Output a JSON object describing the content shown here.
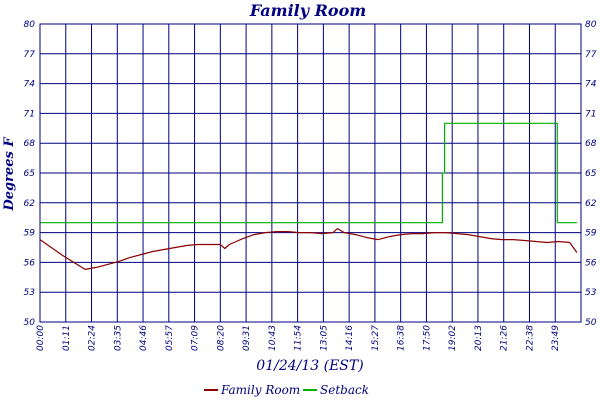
{
  "chart_data": {
    "type": "line",
    "title": "Family Room",
    "xlabel": "01/24/13 (EST)",
    "ylabel": "Degrees F",
    "ylim": [
      50,
      80
    ],
    "y_ticks": [
      "50",
      "53",
      "56",
      "59",
      "62",
      "65",
      "68",
      "71",
      "74",
      "77",
      "80"
    ],
    "x_ticks": [
      "00:00",
      "01:11",
      "02:24",
      "03:35",
      "04:46",
      "05:57",
      "07:09",
      "08:20",
      "09:31",
      "10:43",
      "11:54",
      "13:05",
      "14:16",
      "15:27",
      "16:38",
      "17:50",
      "19:02",
      "20:13",
      "21:26",
      "22:38",
      "23:49"
    ],
    "grid": true,
    "legend": "bottom",
    "colors": {
      "grid": "#000080",
      "frame": "#000080"
    },
    "series": [
      {
        "name": "Family Room",
        "color": "#8b0000",
        "x": [
          0,
          0.5,
          1.0,
          1.5,
          2.0,
          2.5,
          3.0,
          3.5,
          4.0,
          4.5,
          5.0,
          5.5,
          6.0,
          6.5,
          7.0,
          7.5,
          8.0,
          8.2,
          8.4,
          8.6,
          9.0,
          9.5,
          10.0,
          10.5,
          11.0,
          11.5,
          12.0,
          12.5,
          13.0,
          13.2,
          13.5,
          14.0,
          14.5,
          15.0,
          15.5,
          16.0,
          16.5,
          17.0,
          17.5,
          18.0,
          18.5,
          19.0,
          19.5,
          20.0,
          20.5,
          21.0,
          21.5,
          22.0,
          22.5,
          23.0,
          23.5,
          23.82
        ],
        "y": [
          58.3,
          57.5,
          56.7,
          56.0,
          55.3,
          55.5,
          55.8,
          56.1,
          56.5,
          56.8,
          57.1,
          57.3,
          57.5,
          57.7,
          57.8,
          57.8,
          57.8,
          57.4,
          57.8,
          58.0,
          58.4,
          58.8,
          59.0,
          59.1,
          59.1,
          59.0,
          59.0,
          58.9,
          59.0,
          59.4,
          59.0,
          58.8,
          58.5,
          58.3,
          58.6,
          58.8,
          58.9,
          58.9,
          59.0,
          59.0,
          58.9,
          58.8,
          58.6,
          58.4,
          58.3,
          58.3,
          58.2,
          58.1,
          58.0,
          58.1,
          58.0,
          57.0
        ]
      },
      {
        "name": "Setback",
        "color": "#00b000",
        "x": [
          0,
          17.85,
          17.85,
          17.95,
          17.95,
          22.95,
          22.95,
          23.82
        ],
        "y": [
          60,
          60,
          65,
          65,
          70,
          70,
          60,
          60
        ]
      }
    ]
  }
}
